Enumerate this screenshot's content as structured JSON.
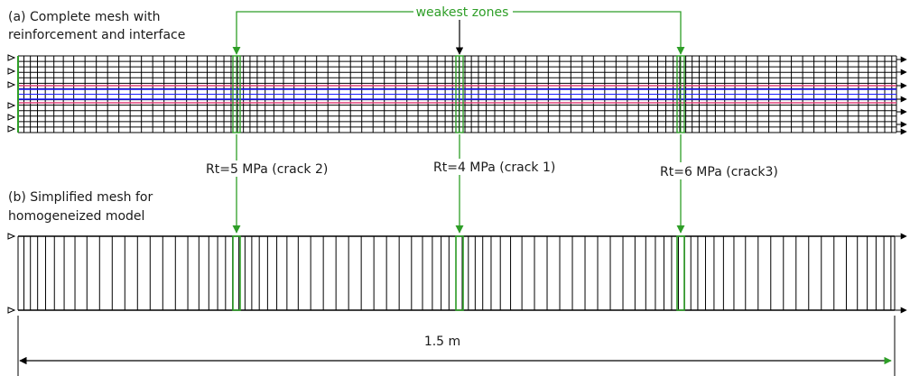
{
  "labels": {
    "panel_a_line1": "(a) Complete mesh with",
    "panel_a_line2": "reinforcement and interface",
    "panel_b_line1": "(b) Simplified mesh for",
    "panel_b_line2": "homogeneized model",
    "weakest": "weakest zones",
    "crack2": "Rt=5 MPa (crack 2)",
    "crack1": "Rt=4 MPa (crack 1)",
    "crack3": "Rt=6 MPa (crack3)",
    "length": "1.5 m"
  },
  "colors": {
    "mesh": "#000000",
    "highlight": "#2e9e27",
    "reinforcement": "#1a1aff",
    "interface": "#e0407a"
  }
}
